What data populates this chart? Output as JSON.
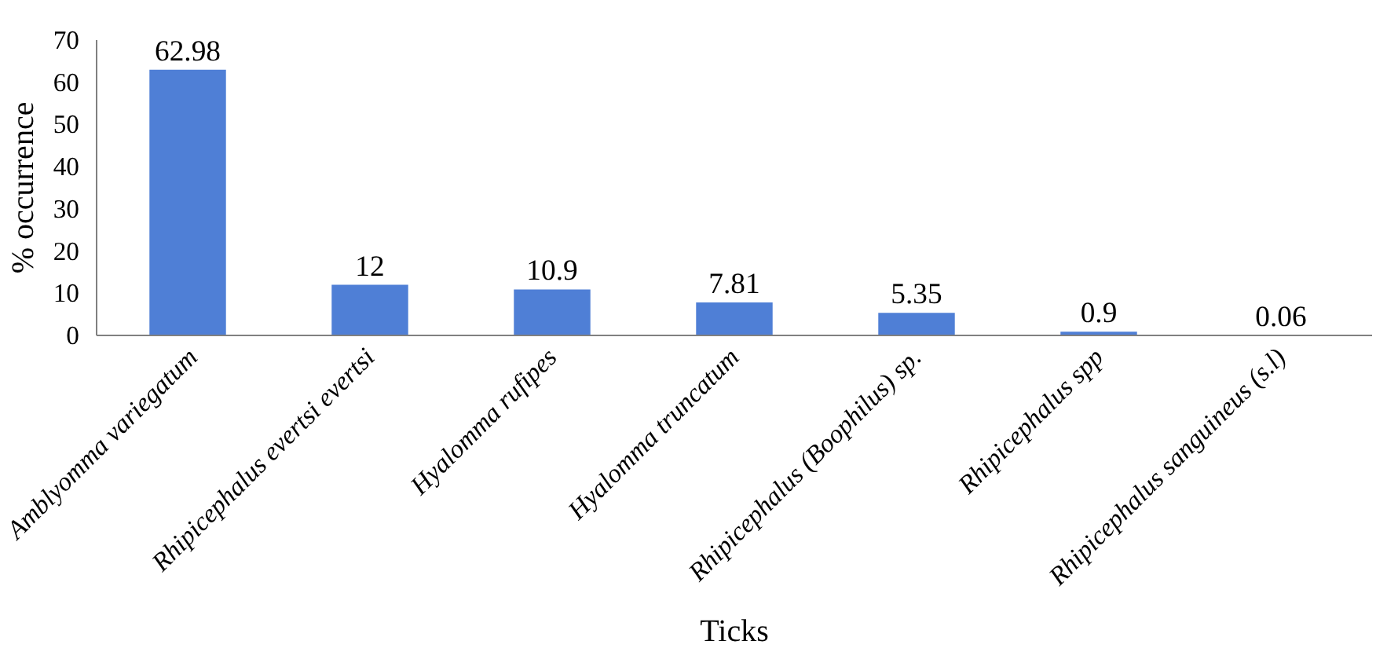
{
  "chart_data": {
    "type": "bar",
    "xlabel": "Ticks",
    "ylabel": "% occurrence",
    "categories": [
      "Amblyomma variegatum",
      "Rhipicephalus evertsi evertsi",
      "Hyalomma rufipes",
      "Hyalomma truncatum",
      "Rhipicephalus (Boophilus) sp.",
      "Rhipicephalus spp",
      "Rhipicephalus sanguineus (s.l)"
    ],
    "values": [
      62.98,
      12,
      10.9,
      7.81,
      5.35,
      0.9,
      0.06
    ],
    "color": "#4f7fd6",
    "ylim": [
      0,
      70
    ],
    "yticks": [
      0,
      10,
      20,
      30,
      40,
      50,
      60,
      70
    ],
    "data_labels": true,
    "grid": false
  }
}
